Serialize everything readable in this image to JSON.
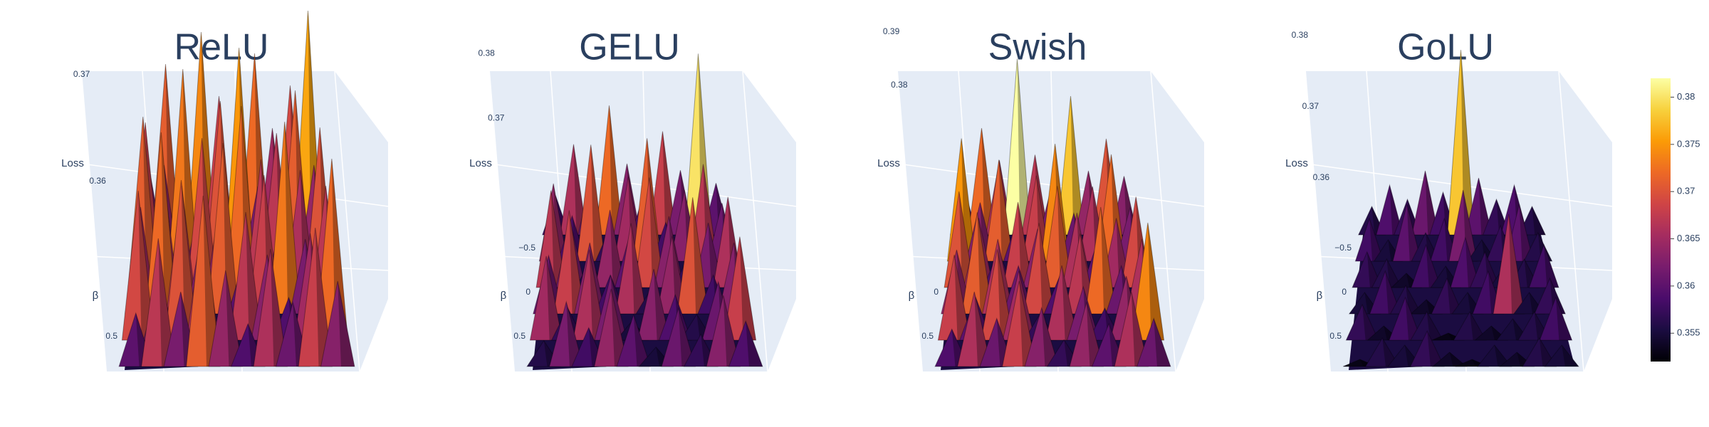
{
  "chart_data": [
    {
      "type": "surface",
      "title": "ReLU",
      "zlabel": "Loss",
      "ylabel": "β",
      "zlim": [
        0.355,
        0.375
      ],
      "zticks": [
        0.36,
        0.37
      ],
      "yticks": [
        0.5
      ],
      "values": [
        [
          0.362,
          0.371,
          0.366,
          0.374,
          0.368,
          0.363,
          0.372,
          0.365,
          0.369,
          0.376
        ],
        [
          0.368,
          0.364,
          0.373,
          0.361,
          0.37,
          0.375,
          0.362,
          0.367,
          0.371,
          0.364
        ],
        [
          0.371,
          0.366,
          0.36,
          0.369,
          0.364,
          0.372,
          0.367,
          0.361,
          0.366,
          0.37
        ],
        [
          0.365,
          0.372,
          0.367,
          0.363,
          0.371,
          0.36,
          0.368,
          0.373,
          0.362,
          0.367
        ],
        [
          0.369,
          0.361,
          0.37,
          0.366,
          0.358,
          0.367,
          0.363,
          0.359,
          0.365,
          0.372
        ],
        [
          0.36,
          0.367,
          0.362,
          0.371,
          0.364,
          0.359,
          0.366,
          0.361,
          0.368,
          0.363
        ]
      ]
    },
    {
      "type": "surface",
      "title": "GELU",
      "zlabel": "Loss",
      "ylabel": "β",
      "zlim": [
        0.352,
        0.385
      ],
      "zticks": [
        0.37,
        0.38
      ],
      "yticks": [
        {
          "value": -0.5,
          "label": "−0.5"
        },
        0,
        0.5
      ],
      "values": [
        [
          0.358,
          0.366,
          0.361,
          0.372,
          0.363,
          0.359,
          0.368,
          0.362,
          0.38,
          0.36
        ],
        [
          0.364,
          0.359,
          0.37,
          0.357,
          0.365,
          0.371,
          0.358,
          0.363,
          0.367,
          0.361
        ],
        [
          0.367,
          0.362,
          0.356,
          0.364,
          0.36,
          0.369,
          0.363,
          0.357,
          0.362,
          0.366
        ],
        [
          0.361,
          0.368,
          0.363,
          0.358,
          0.366,
          0.356,
          0.364,
          0.37,
          0.358,
          0.363
        ],
        [
          0.365,
          0.357,
          0.366,
          0.362,
          0.355,
          0.363,
          0.359,
          0.356,
          0.361,
          0.368
        ],
        [
          0.356,
          0.362,
          0.358,
          0.364,
          0.36,
          0.355,
          0.361,
          0.357,
          0.363,
          0.359
        ]
      ]
    },
    {
      "type": "surface",
      "title": "Swish",
      "zlabel": "Loss",
      "ylabel": "β",
      "zlim": [
        0.352,
        0.392
      ],
      "zticks": [
        0.38,
        0.39
      ],
      "yticks": [
        0,
        0.5
      ],
      "values": [
        [
          0.361,
          0.372,
          0.366,
          0.385,
          0.367,
          0.362,
          0.378,
          0.364,
          0.37,
          0.363
        ],
        [
          0.375,
          0.363,
          0.371,
          0.36,
          0.368,
          0.374,
          0.361,
          0.366,
          0.372,
          0.362
        ],
        [
          0.37,
          0.365,
          0.359,
          0.368,
          0.363,
          0.371,
          0.366,
          0.36,
          0.365,
          0.369
        ],
        [
          0.364,
          0.371,
          0.366,
          0.361,
          0.369,
          0.359,
          0.367,
          0.372,
          0.361,
          0.366
        ],
        [
          0.368,
          0.36,
          0.369,
          0.365,
          0.357,
          0.366,
          0.362,
          0.358,
          0.364,
          0.374
        ],
        [
          0.359,
          0.366,
          0.361,
          0.368,
          0.363,
          0.357,
          0.364,
          0.36,
          0.366,
          0.361
        ]
      ]
    },
    {
      "type": "surface",
      "title": "GoLU",
      "zlabel": "Loss",
      "ylabel": "β",
      "zlim": [
        0.352,
        0.382
      ],
      "zticks": [
        0.36,
        0.37,
        0.38
      ],
      "yticks": [
        {
          "value": -0.5,
          "label": "−0.5"
        },
        0,
        0.5
      ],
      "values": [
        [
          0.356,
          0.359,
          0.357,
          0.361,
          0.358,
          0.378,
          0.36,
          0.357,
          0.359,
          0.356
        ],
        [
          0.358,
          0.355,
          0.36,
          0.356,
          0.358,
          0.362,
          0.355,
          0.357,
          0.36,
          0.356
        ],
        [
          0.357,
          0.356,
          0.354,
          0.358,
          0.355,
          0.359,
          0.357,
          0.355,
          0.356,
          0.358
        ],
        [
          0.355,
          0.358,
          0.356,
          0.354,
          0.357,
          0.355,
          0.358,
          0.366,
          0.355,
          0.357
        ],
        [
          0.357,
          0.354,
          0.358,
          0.356,
          0.353,
          0.356,
          0.354,
          0.355,
          0.356,
          0.358
        ],
        [
          0.353,
          0.356,
          0.355,
          0.357,
          0.354,
          0.353,
          0.355,
          0.354,
          0.356,
          0.355
        ]
      ]
    }
  ],
  "coloraxis": {
    "colorscale": [
      "#000004",
      "#1b0c41",
      "#4a0c6b",
      "#781c6d",
      "#a52c60",
      "#cf4446",
      "#ed6925",
      "#fb9b06",
      "#f7d13d",
      "#fcffa4"
    ],
    "range": [
      0.352,
      0.382
    ],
    "ticks": [
      0.355,
      0.36,
      0.365,
      0.37,
      0.375,
      0.38
    ]
  }
}
